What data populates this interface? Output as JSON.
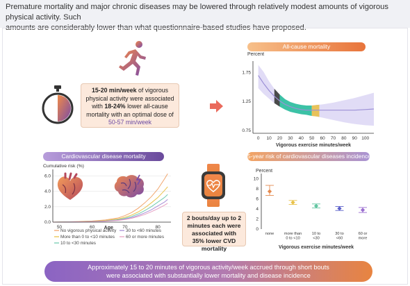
{
  "header": {
    "line1": "Premature mortality and major chronic diseases may be lowered through relatively modest amounts of vigorous physical activity. Such",
    "line2": "amounts are considerably lower than what questionnaire-based studies have proposed."
  },
  "summary_card": {
    "p1": "15-20 min/week",
    "p2": " of vigorous physical activity were associated with ",
    "p3": "18-24%",
    "p4": " lower all-cause mortality with an optimal dose of ",
    "p5": "50-57 min/week"
  },
  "bouts_card": {
    "text": "2 bouts/day up to 2 minutes each were associated with 35% lower CVD mortality"
  },
  "footer": {
    "line1": "Approximately 15 to 20 minutes of vigorous activity/week accrued through short bouts",
    "line2": "were associated with substantially lower mortality and disease incidence"
  },
  "colors": {
    "orange": "#e8743b",
    "purple": "#6a4a9c",
    "band": "#dcd6f4",
    "teal": "#3cc2a6",
    "gold": "#e8c25a"
  },
  "icons": [
    "running-person-icon",
    "stopwatch-icon",
    "arrow-right-icon",
    "heart-icon",
    "brain-icon",
    "smartwatch-icon"
  ],
  "chart_data": [
    {
      "type": "line",
      "title": "All-cause mortality",
      "ylabel": "Percent",
      "xlabel": "Vigorous exercise minutes/week",
      "xticks": [
        0,
        10,
        20,
        30,
        40,
        50,
        60,
        70,
        80,
        90,
        100
      ],
      "yticks": [
        0.75,
        1.25,
        1.75
      ],
      "xlim": [
        -5,
        108
      ],
      "ylim": [
        0.7,
        1.9
      ],
      "x": [
        0,
        5,
        10,
        15,
        20,
        25,
        30,
        35,
        40,
        45,
        50,
        55,
        60,
        70,
        80,
        90,
        100,
        108
      ],
      "y": [
        1.7,
        1.56,
        1.44,
        1.34,
        1.26,
        1.2,
        1.16,
        1.13,
        1.11,
        1.1,
        1.1,
        1.1,
        1.1,
        1.1,
        1.1,
        1.1,
        1.11,
        1.12
      ],
      "lower": [
        1.48,
        1.38,
        1.3,
        1.22,
        1.16,
        1.11,
        1.07,
        1.05,
        1.03,
        1.02,
        1.0,
        0.99,
        0.97,
        0.93,
        0.89,
        0.86,
        0.84,
        0.83
      ],
      "upper": [
        1.88,
        1.76,
        1.6,
        1.47,
        1.37,
        1.29,
        1.24,
        1.21,
        1.19,
        1.18,
        1.18,
        1.19,
        1.2,
        1.23,
        1.27,
        1.31,
        1.36,
        1.4
      ],
      "highlights": [
        [
          15,
          20
        ],
        [
          20,
          50
        ],
        [
          50,
          57
        ]
      ]
    },
    {
      "type": "line",
      "title": "Cardiovascular disease mortality",
      "ylabel": "Cumulative risk (%)",
      "xlabel": "Age",
      "xticks": [
        50,
        60,
        70,
        80
      ],
      "yticks": [
        0.0,
        2.0,
        4.0,
        6.0
      ],
      "xlim": [
        48,
        84
      ],
      "ylim": [
        0,
        6.5
      ],
      "x": [
        48,
        52,
        56,
        60,
        64,
        68,
        70,
        72,
        74,
        76,
        78,
        80,
        82,
        83
      ],
      "series": [
        {
          "name": "No vigorous physical activity",
          "color": "#f1a56c",
          "values": [
            0,
            0.03,
            0.08,
            0.15,
            0.28,
            0.55,
            0.85,
            1.25,
            1.8,
            2.5,
            3.3,
            4.3,
            5.6,
            6.3
          ]
        },
        {
          "name": "More than 0 to <10 minutes",
          "color": "#e9c24a",
          "values": [
            0,
            0.02,
            0.05,
            0.1,
            0.2,
            0.42,
            0.63,
            0.92,
            1.32,
            1.85,
            2.5,
            3.2,
            4.1,
            4.6
          ]
        },
        {
          "name": "10 to <30 minutes",
          "color": "#72cbb0",
          "values": [
            0,
            0.02,
            0.04,
            0.08,
            0.16,
            0.33,
            0.5,
            0.74,
            1.06,
            1.5,
            2.0,
            2.6,
            3.2,
            3.6
          ]
        },
        {
          "name": "30 to <60 minutes",
          "color": "#a88ed6",
          "values": [
            0,
            0.01,
            0.03,
            0.07,
            0.13,
            0.27,
            0.41,
            0.6,
            0.86,
            1.2,
            1.6,
            2.1,
            2.6,
            2.95
          ]
        },
        {
          "name": "60 or more minutes",
          "color": "#e7a1c4",
          "values": [
            0,
            0.01,
            0.03,
            0.06,
            0.11,
            0.23,
            0.34,
            0.5,
            0.72,
            1.0,
            1.35,
            1.75,
            2.2,
            2.45
          ]
        }
      ]
    },
    {
      "type": "scatter",
      "title": "5-year risk of cardiovascular diseases incidence",
      "ylabel": "Percent",
      "xlabel": "Vigorous exercise minutes/week",
      "categories": [
        "none",
        "more than 0 to <10",
        "10 to <30",
        "30 to <60",
        "60 or more"
      ],
      "yticks": [
        0,
        2,
        4,
        6,
        8,
        10
      ],
      "ylim": [
        0,
        10.5
      ],
      "values": [
        7.5,
        5.3,
        4.6,
        4.1,
        3.8
      ],
      "ci_low": [
        6.7,
        4.9,
        4.2,
        3.7,
        3.3
      ],
      "ci_high": [
        8.7,
        5.7,
        5.0,
        4.5,
        4.3
      ],
      "colors": [
        "#e58a4f",
        "#e9c24a",
        "#5fc49f",
        "#5a5fc9",
        "#9b6fd0"
      ]
    }
  ]
}
